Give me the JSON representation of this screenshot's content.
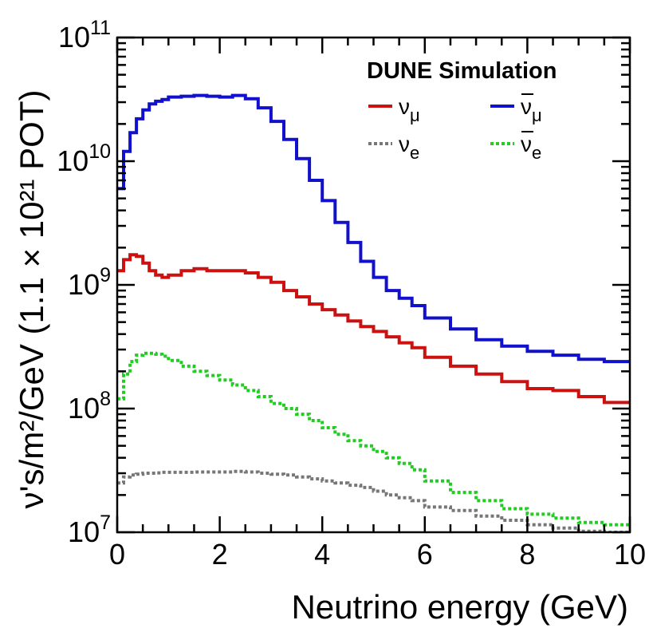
{
  "chart_data": {
    "type": "line",
    "subtype": "step-histogram",
    "title": "DUNE Simulation",
    "xlabel": "Neutrino energy (GeV)",
    "ylabel": "ν's/m²/GeV (1.1 × 10²¹ POT)",
    "xlim": [
      0,
      10
    ],
    "ylim": [
      10000000,
      100000000000
    ],
    "yscale": "log",
    "legend_position": "top-right",
    "x_ticks": [
      0,
      2,
      4,
      6,
      8,
      10
    ],
    "x_tick_labels": [
      "0",
      "2",
      "4",
      "6",
      "8",
      "10"
    ],
    "y_ticks": [
      10000000,
      100000000,
      1000000000,
      10000000000,
      100000000000
    ],
    "y_tick_labels": [
      {
        "base": "10",
        "exp": "7"
      },
      {
        "base": "10",
        "exp": "8"
      },
      {
        "base": "10",
        "exp": "9"
      },
      {
        "base": "10",
        "exp": "10"
      },
      {
        "base": "10",
        "exp": "11"
      }
    ],
    "x": [
      0.125,
      0.25,
      0.375,
      0.5,
      0.625,
      0.75,
      0.875,
      1.0,
      1.25,
      1.5,
      1.75,
      2.0,
      2.25,
      2.5,
      2.75,
      3.0,
      3.25,
      3.5,
      3.75,
      4.0,
      4.25,
      4.5,
      4.75,
      5.0,
      5.25,
      5.5,
      5.75,
      6.0,
      6.5,
      7.0,
      7.5,
      8.0,
      8.5,
      9.0,
      9.5,
      10.0
    ],
    "series": [
      {
        "name": "ν_μ",
        "label_base": "ν",
        "label_sub": "μ",
        "bar": false,
        "color": "#cc1111",
        "dash": "solid",
        "values": [
          1300000000.0,
          1600000000.0,
          1750000000.0,
          1700000000.0,
          1500000000.0,
          1300000000.0,
          1200000000.0,
          1150000000.0,
          1200000000.0,
          1300000000.0,
          1350000000.0,
          1300000000.0,
          1300000000.0,
          1300000000.0,
          1250000000.0,
          1150000000.0,
          1050000000.0,
          900000000.0,
          800000000.0,
          700000000.0,
          630000000.0,
          570000000.0,
          510000000.0,
          460000000.0,
          420000000.0,
          380000000.0,
          340000000.0,
          310000000.0,
          260000000.0,
          220000000.0,
          190000000.0,
          165000000.0,
          145000000.0,
          140000000.0,
          125000000.0,
          112000000.0
        ]
      },
      {
        "name": "ν̄_μ",
        "label_base": "ν",
        "label_sub": "μ",
        "bar": true,
        "color": "#1111cc",
        "dash": "solid",
        "values": [
          6000000000.0,
          12000000000.0,
          17000000000.0,
          22000000000.0,
          26000000000.0,
          29000000000.0,
          30500000000.0,
          31500000000.0,
          33000000000.0,
          33500000000.0,
          34000000000.0,
          33500000000.0,
          33000000000.0,
          34000000000.0,
          32000000000.0,
          27000000000.0,
          21000000000.0,
          15000000000.0,
          10500000000.0,
          7000000000.0,
          4800000000.0,
          3200000000.0,
          2200000000.0,
          1550000000.0,
          1150000000.0,
          900000000.0,
          780000000.0,
          680000000.0,
          540000000.0,
          440000000.0,
          360000000.0,
          320000000.0,
          290000000.0,
          270000000.0,
          250000000.0,
          240000000.0
        ]
      },
      {
        "name": "ν_e",
        "label_base": "ν",
        "label_sub": "e",
        "bar": false,
        "color": "#777777",
        "dash": "dotted",
        "values": [
          25000000.0,
          28000000.0,
          29000000.0,
          29500000.0,
          30000000.0,
          30000000.0,
          30200000.0,
          30500000.0,
          30500000.0,
          30500000.0,
          30700000.0,
          30700000.0,
          30700000.0,
          31000000.0,
          30700000.0,
          30000000.0,
          29500000.0,
          29000000.0,
          28000000.0,
          27000000.0,
          26000000.0,
          25000000.0,
          24000000.0,
          23000000.0,
          21500000.0,
          20000000.0,
          19000000.0,
          18000000.0,
          16000000.0,
          15000000.0,
          13500000.0,
          12500000.0,
          11500000.0,
          10800000.0,
          10200000.0,
          9700000.0
        ]
      },
      {
        "name": "ν̄_e",
        "label_base": "ν",
        "label_sub": "e",
        "bar": true,
        "color": "#22cc22",
        "dash": "dotted",
        "values": [
          120000000.0,
          190000000.0,
          240000000.0,
          270000000.0,
          280000000.0,
          280000000.0,
          275000000.0,
          265000000.0,
          245000000.0,
          220000000.0,
          200000000.0,
          185000000.0,
          170000000.0,
          155000000.0,
          140000000.0,
          125000000.0,
          110000000.0,
          100000000.0,
          90000000.0,
          80000000.0,
          70000000.0,
          62000000.0,
          55000000.0,
          50000000.0,
          45000000.0,
          40000000.0,
          36000000.0,
          32000000.0,
          26000000.0,
          21000000.0,
          18000000.0,
          15500000.0,
          14000000.0,
          13000000.0,
          12000000.0,
          11500000.0
        ]
      }
    ]
  }
}
